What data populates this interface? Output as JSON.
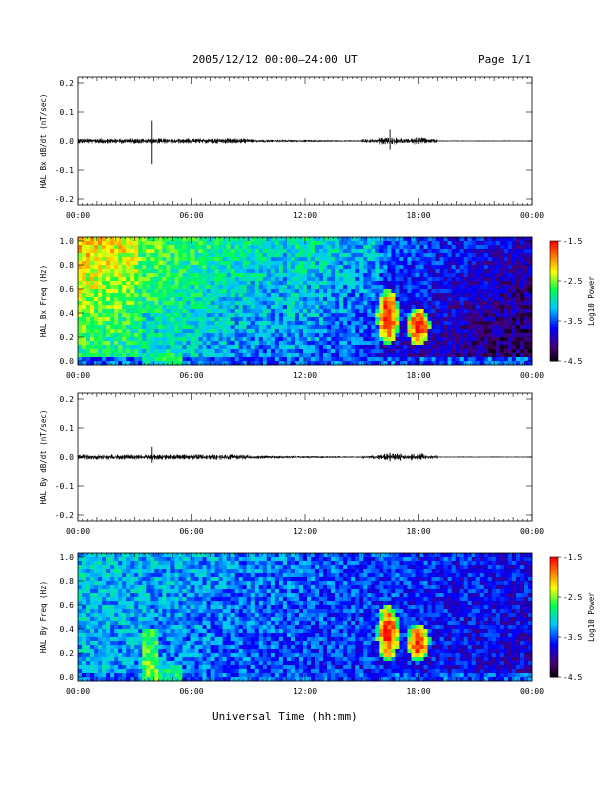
{
  "header": {
    "title": "2005/12/12  00:00–24:00 UT",
    "page": "Page 1/1"
  },
  "chart_data": [
    {
      "type": "line",
      "ylabel": "HAL Bx dB/dt (nT/sec)",
      "ylim": [
        -0.2,
        0.2
      ],
      "yticks": [
        "0.2",
        "0.1",
        "0.0",
        "-0.1",
        "-0.2"
      ],
      "xticks": [
        "00:00",
        "06:00",
        "12:00",
        "18:00",
        "00:00"
      ],
      "xlim_hours": [
        0,
        24
      ],
      "spikes": [
        {
          "hour": 3.9,
          "max": 0.07,
          "min": -0.08
        },
        {
          "hour": 16.5,
          "max": 0.04,
          "min": -0.03
        }
      ]
    },
    {
      "type": "heatmap",
      "ylabel": "HAL Bx Freq (Hz)",
      "ylim": [
        0,
        1
      ],
      "yticks": [
        "1.0",
        "0.8",
        "0.6",
        "0.4",
        "0.2",
        "0.0"
      ],
      "xticks": [
        "00:00",
        "06:00",
        "12:00",
        "18:00",
        "00:00"
      ],
      "colorbar": {
        "label": "Log10 Power",
        "ticks": [
          "-1.5",
          "-2.5",
          "-3.5",
          "-4.5"
        ],
        "range": [
          -4.5,
          -1.5
        ]
      },
      "features": [
        {
          "name": "pc1 burst",
          "hour_range": [
            15.8,
            17.0
          ],
          "freq_range": [
            0.15,
            0.6
          ]
        },
        {
          "name": "pc1 burst",
          "hour_range": [
            17.4,
            18.6
          ],
          "freq_range": [
            0.15,
            0.45
          ]
        }
      ]
    },
    {
      "type": "line",
      "ylabel": "HAL By dB/dt (nT/sec)",
      "ylim": [
        -0.2,
        0.2
      ],
      "yticks": [
        "0.2",
        "0.1",
        "0.0",
        "-0.1",
        "-0.2"
      ],
      "xticks": [
        "00:00",
        "06:00",
        "12:00",
        "18:00",
        "00:00"
      ],
      "xlim_hours": [
        0,
        24
      ],
      "spikes": [
        {
          "hour": 3.9,
          "max": 0.035,
          "min": -0.02
        },
        {
          "hour": 16.5,
          "max": 0.015,
          "min": -0.015
        }
      ]
    },
    {
      "type": "heatmap",
      "ylabel": "HAL By Freq (Hz)",
      "ylim": [
        0,
        1
      ],
      "yticks": [
        "1.0",
        "0.8",
        "0.6",
        "0.4",
        "0.2",
        "0.0"
      ],
      "xticks": [
        "00:00",
        "06:00",
        "12:00",
        "18:00",
        "00:00"
      ],
      "colorbar": {
        "label": "Log10 Power",
        "ticks": [
          "-1.5",
          "-2.5",
          "-3.5",
          "-4.5"
        ],
        "range": [
          -4.5,
          -1.5
        ]
      },
      "features": [
        {
          "name": "pc1 burst",
          "hour_range": [
            15.8,
            17.0
          ],
          "freq_range": [
            0.15,
            0.6
          ]
        },
        {
          "name": "pc1 burst",
          "hour_range": [
            17.4,
            18.6
          ],
          "freq_range": [
            0.15,
            0.45
          ]
        }
      ]
    }
  ],
  "xlabel": "Universal Time (hh:mm)"
}
